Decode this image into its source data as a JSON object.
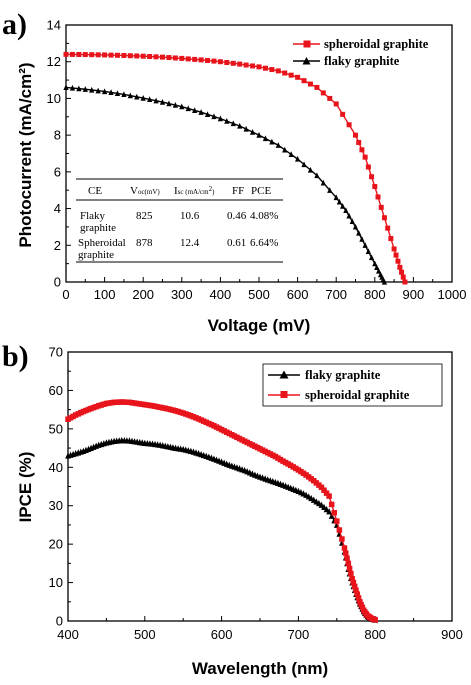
{
  "chart_data": [
    {
      "panel": "a)",
      "type": "line",
      "xlabel": "Voltage (mV)",
      "ylabel": "Photocurrent (mA/cm²)",
      "xlim": [
        0,
        1000
      ],
      "ylim": [
        0,
        14
      ],
      "xticks": [
        0,
        100,
        200,
        300,
        400,
        500,
        600,
        700,
        800,
        900,
        1000
      ],
      "yticks": [
        0,
        2,
        4,
        6,
        8,
        10,
        12,
        14
      ],
      "legend_position": "top-right",
      "series": [
        {
          "name": "spheroidal graphite",
          "color": "#e8141c",
          "marker": "square",
          "x": [
            0,
            50,
            100,
            150,
            200,
            250,
            300,
            350,
            400,
            450,
            500,
            550,
            600,
            650,
            700,
            750,
            775,
            800,
            825,
            850,
            865,
            878
          ],
          "y": [
            12.4,
            12.39,
            12.37,
            12.34,
            12.3,
            12.25,
            12.18,
            12.1,
            12.0,
            11.87,
            11.72,
            11.5,
            11.15,
            10.6,
            9.7,
            8.0,
            6.8,
            5.2,
            3.5,
            1.8,
            0.8,
            0.0
          ]
        },
        {
          "name": "flaky graphite",
          "color": "#000000",
          "marker": "triangle",
          "x": [
            0,
            50,
            100,
            150,
            200,
            250,
            300,
            350,
            400,
            450,
            500,
            550,
            600,
            650,
            700,
            725,
            750,
            775,
            800,
            815,
            825
          ],
          "y": [
            10.6,
            10.5,
            10.38,
            10.22,
            10.02,
            9.8,
            9.55,
            9.25,
            8.9,
            8.5,
            8.0,
            7.45,
            6.7,
            5.8,
            4.6,
            3.9,
            3.0,
            2.0,
            1.0,
            0.4,
            0.0
          ]
        }
      ],
      "table": {
        "headers": [
          "CE",
          "V",
          "oc(mV)",
          "I",
          "sc (mA/cm",
          "2",
          ")",
          "FF",
          "PCE"
        ],
        "rows": [
          {
            "ce_line1": "Flaky",
            "ce_line2": "graphite",
            "voc": "825",
            "isc": "10.6",
            "ff": "0.46",
            "pce": "4.08%"
          },
          {
            "ce_line1": "Spheroidal",
            "ce_line2": "graphite",
            "voc": "878",
            "isc": "12.4",
            "ff": "0.61",
            "pce": "6.64%"
          }
        ]
      }
    },
    {
      "panel": "b)",
      "type": "line",
      "xlabel": "Wavelength (nm)",
      "ylabel": "IPCE (%)",
      "xlim": [
        400,
        900
      ],
      "ylim": [
        0,
        70
      ],
      "xticks": [
        400,
        500,
        600,
        700,
        800,
        900
      ],
      "yticks": [
        0,
        10,
        20,
        30,
        40,
        50,
        60,
        70
      ],
      "legend_position": "top-right",
      "series": [
        {
          "name": "flaky graphite",
          "color": "#000000",
          "marker": "triangle",
          "x": [
            400,
            410,
            420,
            430,
            440,
            450,
            460,
            470,
            480,
            490,
            500,
            510,
            520,
            530,
            540,
            550,
            560,
            570,
            580,
            590,
            600,
            610,
            620,
            630,
            640,
            650,
            660,
            670,
            680,
            690,
            700,
            710,
            720,
            730,
            740,
            750,
            760,
            765,
            770,
            775,
            780,
            785,
            790,
            795,
            800
          ],
          "y": [
            43.0,
            43.6,
            44.2,
            45.0,
            45.8,
            46.4,
            46.8,
            47.0,
            46.9,
            46.6,
            46.3,
            46.1,
            45.8,
            45.4,
            45.0,
            44.7,
            44.2,
            43.6,
            42.9,
            42.2,
            41.4,
            40.6,
            39.9,
            39.2,
            38.3,
            37.5,
            36.8,
            36.1,
            35.4,
            34.6,
            33.8,
            32.8,
            31.5,
            30.2,
            28.5,
            25.0,
            18.0,
            13.5,
            10.0,
            7.0,
            4.5,
            2.5,
            1.2,
            0.6,
            0.3
          ]
        },
        {
          "name": "spheroidal graphite",
          "color": "#e8141c",
          "marker": "square",
          "x": [
            400,
            410,
            420,
            430,
            440,
            450,
            460,
            470,
            480,
            490,
            500,
            510,
            520,
            530,
            540,
            550,
            560,
            570,
            580,
            590,
            600,
            610,
            620,
            630,
            640,
            650,
            660,
            670,
            680,
            690,
            700,
            710,
            720,
            730,
            740,
            750,
            760,
            765,
            770,
            775,
            780,
            785,
            790,
            795,
            800
          ],
          "y": [
            52.5,
            53.6,
            54.5,
            55.3,
            56.0,
            56.6,
            56.9,
            57.0,
            56.9,
            56.6,
            56.3,
            56.0,
            55.6,
            55.2,
            54.7,
            54.1,
            53.4,
            52.6,
            51.7,
            50.8,
            49.8,
            48.8,
            47.8,
            46.8,
            45.8,
            44.8,
            43.8,
            42.8,
            41.6,
            40.5,
            39.3,
            38.0,
            36.5,
            34.8,
            32.5,
            26.0,
            19.0,
            15.0,
            11.0,
            8.0,
            5.0,
            2.8,
            1.4,
            0.7,
            0.3
          ]
        }
      ]
    }
  ]
}
